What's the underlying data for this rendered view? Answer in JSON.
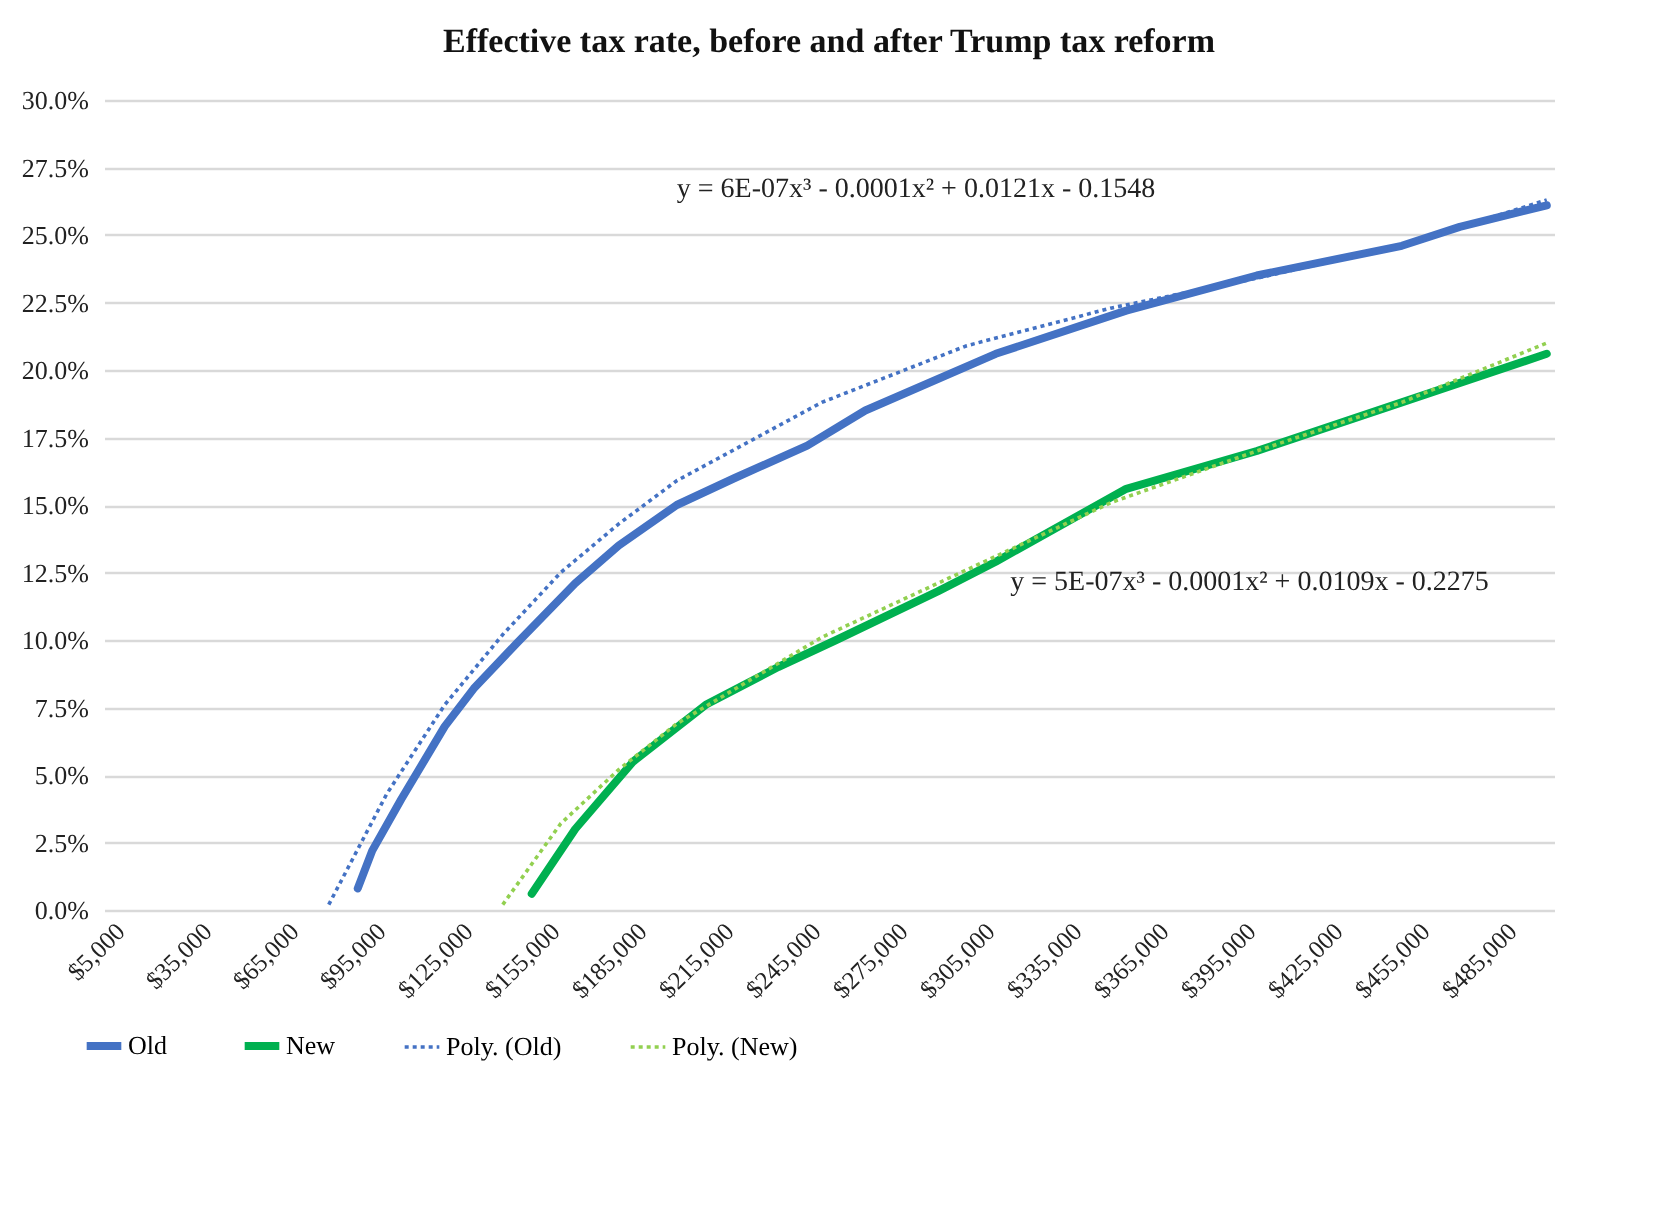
{
  "chart_data": {
    "type": "line",
    "title": "Effective tax rate, before and after Trump tax reform",
    "xlim": [
      2500,
      502500
    ],
    "xticks": [
      {
        "value": 5000,
        "label": "$5,000"
      },
      {
        "value": 35000,
        "label": "$35,000"
      },
      {
        "value": 65000,
        "label": "$65,000"
      },
      {
        "value": 95000,
        "label": "$95,000"
      },
      {
        "value": 125000,
        "label": "$125,000"
      },
      {
        "value": 155000,
        "label": "$155,000"
      },
      {
        "value": 185000,
        "label": "$185,000"
      },
      {
        "value": 215000,
        "label": "$215,000"
      },
      {
        "value": 245000,
        "label": "$245,000"
      },
      {
        "value": 275000,
        "label": "$275,000"
      },
      {
        "value": 305000,
        "label": "$305,000"
      },
      {
        "value": 335000,
        "label": "$335,000"
      },
      {
        "value": 365000,
        "label": "$365,000"
      },
      {
        "value": 395000,
        "label": "$395,000"
      },
      {
        "value": 425000,
        "label": "$425,000"
      },
      {
        "value": 455000,
        "label": "$455,000"
      },
      {
        "value": 485000,
        "label": "$485,000"
      }
    ],
    "ylim": [
      0,
      30
    ],
    "yticks": [
      {
        "value": 0,
        "label": "0.0%"
      },
      {
        "value": 2.5,
        "label": "2.5%"
      },
      {
        "value": 5,
        "label": "5.0%"
      },
      {
        "value": 7.5,
        "label": "7.5%"
      },
      {
        "value": 10,
        "label": "10.0%"
      },
      {
        "value": 12.5,
        "label": "12.5%"
      },
      {
        "value": 15,
        "label": "15.0%"
      },
      {
        "value": 17.5,
        "label": "17.5%"
      },
      {
        "value": 20,
        "label": "20.0%"
      },
      {
        "value": 22.5,
        "label": "22.5%"
      },
      {
        "value": 25,
        "label": "25.0%"
      },
      {
        "value": 27.5,
        "label": "27.5%"
      },
      {
        "value": 30,
        "label": "30.0%"
      }
    ],
    "grid": "y",
    "legend": "bottom",
    "marker": "none",
    "series": [
      {
        "name": "Old",
        "color": "#4472c4",
        "line_style": "solid",
        "x": [
          90000,
          95000,
          105000,
          120000,
          130000,
          145000,
          165000,
          180000,
          200000,
          220000,
          245000,
          265000,
          310000,
          355000,
          400000,
          450000,
          470000,
          500000
        ],
        "values": [
          0.8,
          2.2,
          4.1,
          6.8,
          8.2,
          9.9,
          12.1,
          13.5,
          15.0,
          16.0,
          17.2,
          18.5,
          20.6,
          22.2,
          23.5,
          24.6,
          25.3,
          26.1
        ]
      },
      {
        "name": "New",
        "color": "#00b050",
        "line_style": "solid",
        "x": [
          150000,
          165000,
          185000,
          210000,
          235000,
          255000,
          290000,
          310000,
          355000,
          400000,
          450000,
          500000
        ],
        "values": [
          0.6,
          3.0,
          5.5,
          7.6,
          9.0,
          10.0,
          11.8,
          12.9,
          15.6,
          17.0,
          18.8,
          20.6
        ]
      },
      {
        "name": "Poly. (Old)",
        "color": "#4472c4",
        "type": "line",
        "line_style": "dotted",
        "x": [
          80000,
          100000,
          120000,
          140000,
          160000,
          180000,
          200000,
          250000,
          300000,
          350000,
          400000,
          450000,
          500000
        ],
        "values": [
          0.2,
          4.3,
          7.6,
          10.2,
          12.5,
          14.3,
          15.9,
          18.8,
          20.9,
          22.3,
          23.4,
          24.6,
          26.3
        ]
      },
      {
        "name": "Poly. (New)",
        "color": "#92d050",
        "type": "line",
        "line_style": "dotted",
        "x": [
          140000,
          160000,
          180000,
          200000,
          250000,
          300000,
          350000,
          400000,
          450000,
          500000
        ],
        "values": [
          0.2,
          3.2,
          5.2,
          6.9,
          10.1,
          12.6,
          15.1,
          17.0,
          18.8,
          21.0
        ]
      }
    ],
    "annotations": [
      "y = 6E-07x³ - 0.0001x² + 0.0121x - 0.1548",
      "y = 5E-07x³ - 0.0001x² + 0.0109x - 0.2275"
    ]
  }
}
